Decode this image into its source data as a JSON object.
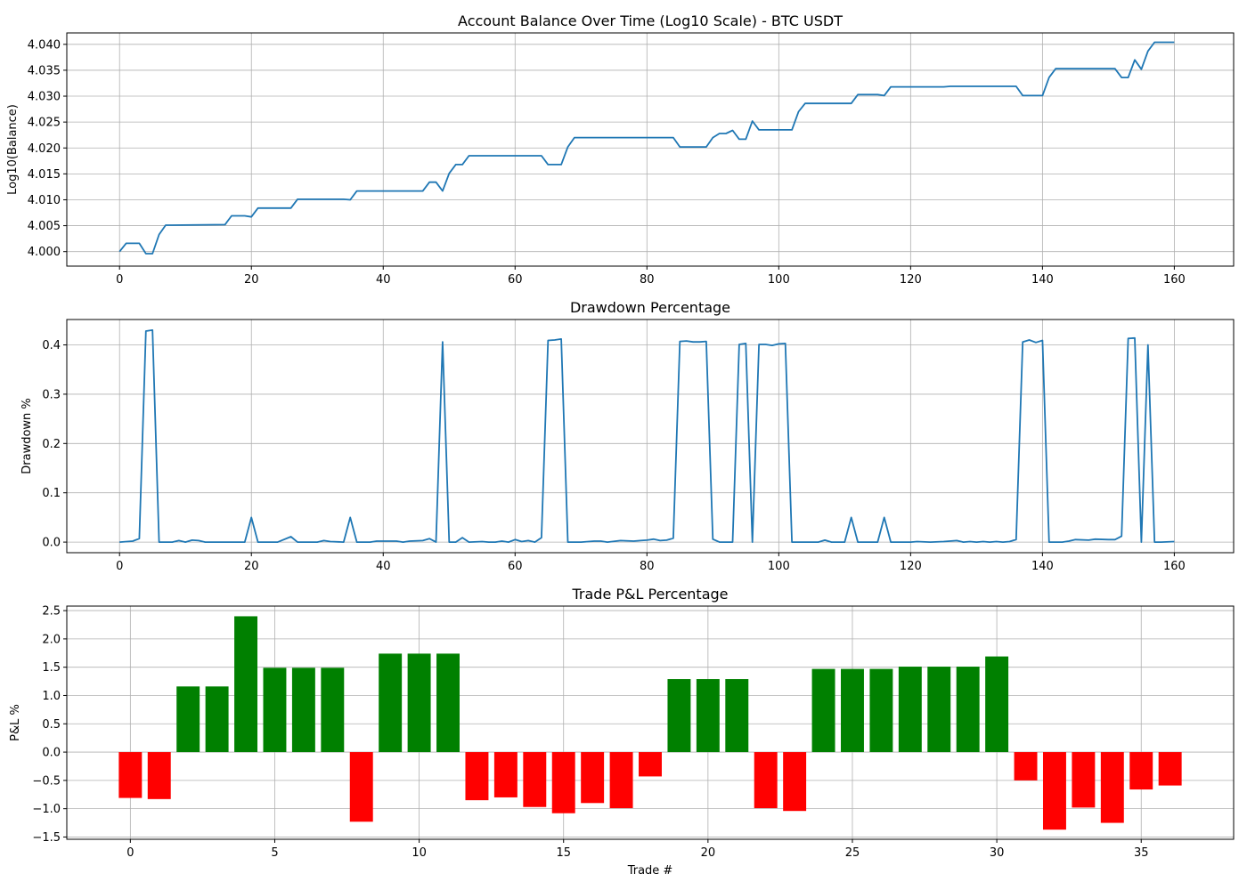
{
  "chart_data": [
    {
      "type": "line",
      "title": "Account Balance Over Time (Log10 Scale) - BTC USDT",
      "xlabel": "",
      "ylabel": "Log10(Balance)",
      "xlim": [
        -8,
        169
      ],
      "ylim": [
        3.9972,
        4.0422
      ],
      "xticks": [
        0,
        20,
        40,
        60,
        80,
        100,
        120,
        140,
        160
      ],
      "yticks": [
        4.0,
        4.005,
        4.01,
        4.015,
        4.02,
        4.025,
        4.03,
        4.035,
        4.04
      ],
      "ytick_labels": [
        "4.000",
        "4.005",
        "4.010",
        "4.015",
        "4.020",
        "4.025",
        "4.030",
        "4.035",
        "4.040"
      ],
      "grid": true,
      "color": "#1f77b4",
      "series": [
        {
          "x": [
            0,
            1,
            3,
            4,
            5,
            6,
            7,
            8,
            16,
            17,
            19,
            20,
            21,
            26,
            27,
            34,
            35,
            36,
            46,
            47,
            48,
            49,
            50,
            51,
            52,
            53,
            64,
            65,
            67,
            68,
            69,
            84,
            85,
            89,
            90,
            91,
            92,
            93,
            94,
            95,
            96,
            97,
            102,
            103,
            104,
            111,
            112,
            115,
            116,
            117,
            125,
            126,
            136,
            137,
            140,
            141,
            142,
            151,
            152,
            153,
            154,
            155,
            156,
            157,
            160
          ],
          "y": [
            4.0,
            4.0016,
            4.0016,
            3.9996,
            3.9996,
            4.0033,
            4.0051,
            4.0051,
            4.0052,
            4.0069,
            4.0069,
            4.0067,
            4.0084,
            4.0084,
            4.0101,
            4.0101,
            4.01,
            4.0117,
            4.0117,
            4.0134,
            4.0134,
            4.0117,
            4.0151,
            4.0168,
            4.0168,
            4.0185,
            4.0185,
            4.0168,
            4.0168,
            4.0202,
            4.022,
            4.022,
            4.0202,
            4.0202,
            4.022,
            4.0228,
            4.0228,
            4.0234,
            4.0217,
            4.0217,
            4.0252,
            4.0235,
            4.0235,
            4.027,
            4.0286,
            4.0286,
            4.0303,
            4.0303,
            4.0301,
            4.0318,
            4.0318,
            4.0319,
            4.0319,
            4.0301,
            4.0301,
            4.0336,
            4.0353,
            4.0353,
            4.0336,
            4.0336,
            4.037,
            4.0352,
            4.0387,
            4.0404,
            4.0404
          ]
        }
      ]
    },
    {
      "type": "line",
      "title": "Drawdown Percentage",
      "xlabel": "",
      "ylabel": "Drawdown %",
      "xlim": [
        -8,
        169
      ],
      "ylim": [
        -0.0215,
        0.4515
      ],
      "xticks": [
        0,
        20,
        40,
        60,
        80,
        100,
        120,
        140,
        160
      ],
      "yticks": [
        0.0,
        0.1,
        0.2,
        0.3,
        0.4
      ],
      "ytick_labels": [
        "0.0",
        "0.1",
        "0.2",
        "0.3",
        "0.4"
      ],
      "grid": true,
      "color": "#1f77b4",
      "series": [
        {
          "x": [
            0,
            2,
            3,
            4,
            5,
            6,
            8,
            9,
            10,
            11,
            12,
            13,
            19,
            20,
            21,
            24,
            26,
            27,
            30,
            31,
            32,
            34,
            35,
            36,
            38,
            39,
            41,
            42,
            43,
            44,
            46,
            47,
            48,
            49,
            50,
            51,
            52,
            53,
            55,
            56,
            57,
            58,
            59,
            60,
            61,
            62,
            63,
            64,
            65,
            66,
            67,
            68,
            70,
            72,
            73,
            74,
            76,
            78,
            79,
            80,
            81,
            82,
            83,
            84,
            85,
            86,
            87,
            88,
            89,
            90,
            91,
            93,
            94,
            95,
            96,
            97,
            98,
            99,
            100,
            101,
            102,
            103,
            105,
            106,
            107,
            108,
            110,
            111,
            112,
            113,
            115,
            116,
            117,
            120,
            121,
            123,
            125,
            127,
            128,
            129,
            130,
            131,
            132,
            133,
            134,
            135,
            136,
            137,
            138,
            139,
            140,
            141,
            143,
            144,
            145,
            147,
            148,
            150,
            151,
            152,
            153,
            154,
            155,
            156,
            157,
            158,
            160
          ],
          "y": [
            0.0,
            0.002,
            0.007,
            0.428,
            0.43,
            0.0,
            0.0,
            0.003,
            0.0,
            0.004,
            0.003,
            0.0,
            0.0,
            0.05,
            0.0,
            0.0,
            0.011,
            0.0,
            0.0,
            0.003,
            0.001,
            0.0,
            0.05,
            0.0,
            0.0,
            0.002,
            0.002,
            0.002,
            0.0,
            0.002,
            0.003,
            0.007,
            0.0,
            0.406,
            0.0,
            0.0,
            0.009,
            0.0,
            0.001,
            0.0,
            0.0,
            0.002,
            0.0,
            0.005,
            0.001,
            0.003,
            0.0,
            0.009,
            0.409,
            0.41,
            0.412,
            0.0,
            0.0,
            0.002,
            0.002,
            0.0,
            0.003,
            0.002,
            0.003,
            0.004,
            0.006,
            0.003,
            0.004,
            0.008,
            0.407,
            0.408,
            0.406,
            0.406,
            0.407,
            0.006,
            0.0,
            0.0,
            0.401,
            0.403,
            0.0,
            0.401,
            0.401,
            0.399,
            0.402,
            0.403,
            0.0,
            0.0,
            0.0,
            0.0,
            0.004,
            0.0,
            0.0,
            0.05,
            0.0,
            0.0,
            0.0,
            0.05,
            0.0,
            0.0,
            0.001,
            0.0,
            0.001,
            0.003,
            0.0,
            0.001,
            0.0,
            0.001,
            0.0,
            0.001,
            0.0,
            0.001,
            0.005,
            0.406,
            0.41,
            0.405,
            0.409,
            0.0,
            0.0,
            0.002,
            0.005,
            0.004,
            0.006,
            0.005,
            0.005,
            0.012,
            0.413,
            0.414,
            0.0,
            0.4,
            0.0,
            0.0,
            0.001
          ]
        }
      ]
    },
    {
      "type": "bar",
      "title": "Trade P&L Percentage",
      "xlabel": "Trade #",
      "ylabel": "P&L %",
      "xlim": [
        -2.2,
        38.2
      ],
      "ylim": [
        -1.54,
        2.58
      ],
      "xticks": [
        0,
        5,
        10,
        15,
        20,
        25,
        30,
        35
      ],
      "yticks": [
        -1.5,
        -1.0,
        -0.5,
        0.0,
        0.5,
        1.0,
        1.5,
        2.0,
        2.5
      ],
      "ytick_labels": [
        "−1.5",
        "−1.0",
        "−0.5",
        "0.0",
        "0.5",
        "1.0",
        "1.5",
        "2.0",
        "2.5"
      ],
      "grid": true,
      "bar_width": 0.8,
      "positive_color": "#008000",
      "negative_color": "#ff0000",
      "categories": [
        0,
        1,
        2,
        3,
        4,
        5,
        6,
        7,
        8,
        9,
        10,
        11,
        12,
        13,
        14,
        15,
        16,
        17,
        18,
        19,
        20,
        21,
        22,
        23,
        24,
        25,
        26,
        27,
        28,
        29,
        30,
        31,
        32,
        33,
        34,
        35,
        36
      ],
      "values": [
        -0.81,
        -0.83,
        1.16,
        1.16,
        2.4,
        1.49,
        1.49,
        1.49,
        -1.23,
        1.74,
        1.74,
        1.74,
        -0.85,
        -0.8,
        -0.97,
        -1.08,
        -0.9,
        -0.99,
        -0.43,
        1.29,
        1.29,
        1.29,
        -0.99,
        -1.04,
        1.47,
        1.47,
        1.47,
        1.51,
        1.51,
        1.51,
        1.69,
        -0.5,
        -1.37,
        -0.98,
        -1.25,
        -0.66,
        -0.59
      ]
    }
  ]
}
